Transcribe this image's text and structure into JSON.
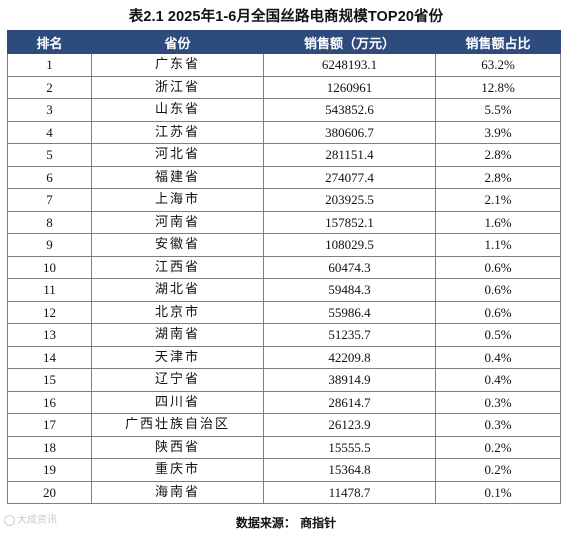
{
  "title": "表2.1 2025年1-6月全国丝路电商规模TOP20省份",
  "table": {
    "headers": [
      "排名",
      "省份",
      "销售额（万元）",
      "销售额占比"
    ],
    "rows": [
      {
        "rank": "1",
        "province": "广东省",
        "sales": "6248193.1",
        "share": "63.2%"
      },
      {
        "rank": "2",
        "province": "浙江省",
        "sales": "1260961",
        "share": "12.8%"
      },
      {
        "rank": "3",
        "province": "山东省",
        "sales": "543852.6",
        "share": "5.5%"
      },
      {
        "rank": "4",
        "province": "江苏省",
        "sales": "380606.7",
        "share": "3.9%"
      },
      {
        "rank": "5",
        "province": "河北省",
        "sales": "281151.4",
        "share": "2.8%"
      },
      {
        "rank": "6",
        "province": "福建省",
        "sales": "274077.4",
        "share": "2.8%"
      },
      {
        "rank": "7",
        "province": "上海市",
        "sales": "203925.5",
        "share": "2.1%"
      },
      {
        "rank": "8",
        "province": "河南省",
        "sales": "157852.1",
        "share": "1.6%"
      },
      {
        "rank": "9",
        "province": "安徽省",
        "sales": "108029.5",
        "share": "1.1%"
      },
      {
        "rank": "10",
        "province": "江西省",
        "sales": "60474.3",
        "share": "0.6%"
      },
      {
        "rank": "11",
        "province": "湖北省",
        "sales": "59484.3",
        "share": "0.6%"
      },
      {
        "rank": "12",
        "province": "北京市",
        "sales": "55986.4",
        "share": "0.6%"
      },
      {
        "rank": "13",
        "province": "湖南省",
        "sales": "51235.7",
        "share": "0.5%"
      },
      {
        "rank": "14",
        "province": "天津市",
        "sales": "42209.8",
        "share": "0.4%"
      },
      {
        "rank": "15",
        "province": "辽宁省",
        "sales": "38914.9",
        "share": "0.4%"
      },
      {
        "rank": "16",
        "province": "四川省",
        "sales": "28614.7",
        "share": "0.3%"
      },
      {
        "rank": "17",
        "province": "广西壮族自治区",
        "sales": "26123.9",
        "share": "0.3%"
      },
      {
        "rank": "18",
        "province": "陕西省",
        "sales": "15555.5",
        "share": "0.2%"
      },
      {
        "rank": "19",
        "province": "重庆市",
        "sales": "15364.8",
        "share": "0.2%"
      },
      {
        "rank": "20",
        "province": "海南省",
        "sales": "11478.7",
        "share": "0.1%"
      }
    ]
  },
  "source": "数据来源：  商指针",
  "watermark": "大成资讯",
  "colors": {
    "header_bg": "#2e4b7d",
    "header_text": "#ffffff",
    "border": "#7f7f7f"
  }
}
